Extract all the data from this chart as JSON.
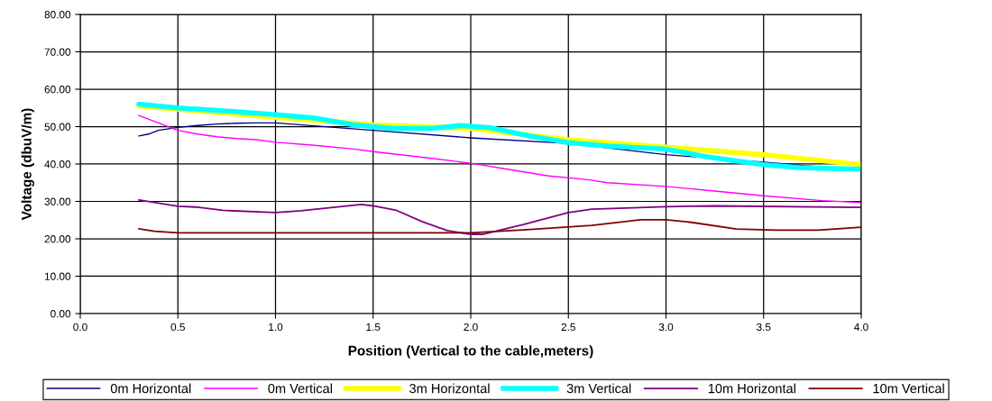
{
  "chart_data": {
    "type": "line",
    "xlabel": "Position (Vertical to the cable,meters)",
    "ylabel": "Voltage (dbuV/m)",
    "xlim": [
      0.0,
      4.0
    ],
    "xticks": [
      {
        "value": 0,
        "label": "0.0"
      },
      {
        "value": 0.5,
        "label": "0.5"
      },
      {
        "value": 1,
        "label": "1.0"
      },
      {
        "value": 1.5,
        "label": "1.5"
      },
      {
        "value": 2,
        "label": "2.0"
      },
      {
        "value": 2.5,
        "label": "2.5"
      },
      {
        "value": 3,
        "label": "3.0"
      },
      {
        "value": 3.5,
        "label": "3.5"
      },
      {
        "value": 4,
        "label": "4.0"
      }
    ],
    "ylim": [
      0,
      80
    ],
    "yticks": [
      {
        "value": 0,
        "label": "0.00"
      },
      {
        "value": 10,
        "label": "10.00"
      },
      {
        "value": 20,
        "label": "20.00"
      },
      {
        "value": 30,
        "label": "30.00"
      },
      {
        "value": 40,
        "label": "40.00"
      },
      {
        "value": 50,
        "label": "50.00"
      },
      {
        "value": 60,
        "label": "60.00"
      },
      {
        "value": 70,
        "label": "70.00"
      },
      {
        "value": 80,
        "label": "80.00"
      }
    ],
    "grid": true,
    "legend": "bottom",
    "marker": "none",
    "line_style": "solid",
    "series": [
      {
        "name": "0m Horizontal",
        "color": "#000080",
        "x": [
          0.3,
          0.35,
          0.4,
          0.5,
          0.6,
          0.7,
          0.8,
          0.9,
          1.0,
          1.5,
          2.0,
          2.5,
          3.0,
          3.5,
          4.0
        ],
        "values": [
          47.5,
          48,
          49,
          49.8,
          50.3,
          50.7,
          50.9,
          51,
          51,
          49,
          47,
          45.5,
          42.5,
          40.5,
          38.3
        ]
      },
      {
        "name": "0m Vertical",
        "color": "#ff00ff",
        "x": [
          0.3,
          0.4,
          0.5,
          0.6,
          0.7,
          0.8,
          0.9,
          1.0,
          1.2,
          1.4,
          1.5,
          1.8,
          2.0,
          2.2,
          2.4,
          2.6,
          2.7,
          3.0,
          3.2,
          3.5,
          3.8,
          4.0
        ],
        "values": [
          53,
          51,
          49,
          48,
          47.3,
          46.8,
          46.5,
          45.8,
          45,
          44,
          43.3,
          41.5,
          40.2,
          38.5,
          36.8,
          35.8,
          35,
          34,
          33,
          31.5,
          30.2,
          29.7
        ]
      },
      {
        "name": "3m Horizontal",
        "color": "#ffff00",
        "x": [
          0.3,
          1.0,
          1.5,
          2.0,
          2.5,
          3.0,
          3.5,
          4.0
        ],
        "values": [
          55.5,
          52.5,
          50.5,
          49.5,
          46.5,
          44.5,
          42.5,
          39.8
        ]
      },
      {
        "name": "3m Vertical",
        "color": "#00ffff",
        "x": [
          0.3,
          0.5,
          0.8,
          1.0,
          1.2,
          1.4,
          1.6,
          1.8,
          1.95,
          2.1,
          2.3,
          2.5,
          2.7,
          3.0,
          3.2,
          3.5,
          3.7,
          4.0
        ],
        "values": [
          56,
          55,
          54,
          53.2,
          52.3,
          50.5,
          49.5,
          49.5,
          50.3,
          49.7,
          47.5,
          45.7,
          44.8,
          44,
          42,
          39.8,
          39,
          38.6
        ]
      },
      {
        "name": "10m Horizontal",
        "color": "#800080",
        "x": [
          0.3,
          0.5,
          0.59,
          0.73,
          1.0,
          1.13,
          1.44,
          1.5,
          1.62,
          1.75,
          1.88,
          2.0,
          2.06,
          2.27,
          2.5,
          2.62,
          3.0,
          3.25,
          4.0
        ],
        "values": [
          30.4,
          28.7,
          28.5,
          27.6,
          27.0,
          27.5,
          29.2,
          28.8,
          27.6,
          24.6,
          22.2,
          21.2,
          21.2,
          23.8,
          27,
          27.9,
          28.6,
          28.8,
          28.4
        ]
      },
      {
        "name": "10m Vertical",
        "color": "#800000",
        "x": [
          0.3,
          0.38,
          0.5,
          2.0,
          2.27,
          2.62,
          2.87,
          3.0,
          3.13,
          3.36,
          3.56,
          3.78,
          4.0
        ],
        "values": [
          22.7,
          22.0,
          21.6,
          21.6,
          22.4,
          23.6,
          25.1,
          25.1,
          24.4,
          22.6,
          22.3,
          22.3,
          23.1
        ]
      }
    ]
  }
}
